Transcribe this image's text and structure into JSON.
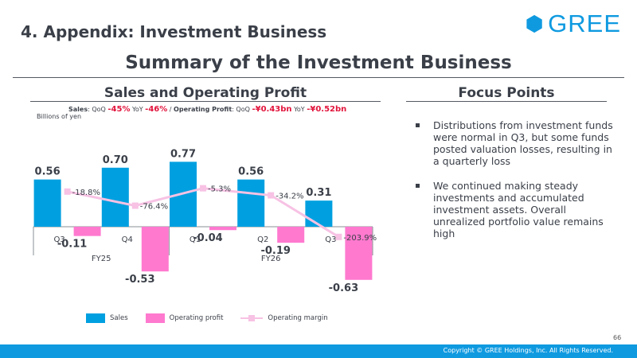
{
  "header": {
    "section_title": "4. Appendix: Investment Business",
    "logo_text": "GREE"
  },
  "slide": {
    "title": "Summary of the Investment Business",
    "chart_heading": "Sales and Operating Profit",
    "focus_heading": "Focus Points"
  },
  "growth": {
    "sales_label": "Sales",
    "sales_sep": ": QoQ ",
    "sales_qoq": "-45%",
    "sales_yoy_label": " YoY ",
    "sales_yoy": "-46%",
    "divider": " / ",
    "op_label": "Operating Profit",
    "op_sep": ": QoQ ",
    "op_qoq": "-¥0.43bn",
    "op_yoy_label": " YoY ",
    "op_yoy": "-¥0.52bn"
  },
  "unit_label": "Billions of yen",
  "chart_data": {
    "type": "bar",
    "categories": [
      "Q3",
      "Q4",
      "Q1",
      "Q2",
      "Q3"
    ],
    "groups": [
      {
        "label": "FY25",
        "span": [
          0,
          1
        ]
      },
      {
        "label": "FY26",
        "span": [
          2,
          4
        ]
      }
    ],
    "series": [
      {
        "name": "Sales",
        "values": [
          0.56,
          0.7,
          0.77,
          0.56,
          0.31
        ],
        "labels": [
          "0.56",
          "0.70",
          "0.77",
          "0.56",
          "0.31"
        ],
        "color": "#00a0e0"
      },
      {
        "name": "Operating profit",
        "values": [
          -0.11,
          -0.53,
          -0.04,
          -0.19,
          -0.63
        ],
        "labels": [
          "-0.11",
          "-0.53",
          "-0.04",
          "-0.19",
          "-0.63"
        ],
        "color": "#ff79cf"
      }
    ],
    "line_series": {
      "name": "Operating margin",
      "values": [
        -18.8,
        -76.4,
        -5.3,
        -34.2,
        -203.9
      ],
      "labels": [
        "-18.8%",
        "-76.4%",
        "-5.3%",
        "-34.2%",
        "-203.9%"
      ],
      "color": "#f7c2e4"
    },
    "ylim": [
      -0.7,
      0.85
    ],
    "legend_position": "bottom"
  },
  "focus_points": [
    "Distributions from investment funds were normal in Q3, but some funds posted valuation losses, resulting in a quarterly loss",
    "We continued making steady investments and accumulated investment assets. Overall unrealized portfolio value remains high"
  ],
  "footer": {
    "page_number": "66",
    "copyright": "Copyright © GREE Holdings, Inc. All Rights Reserved."
  }
}
